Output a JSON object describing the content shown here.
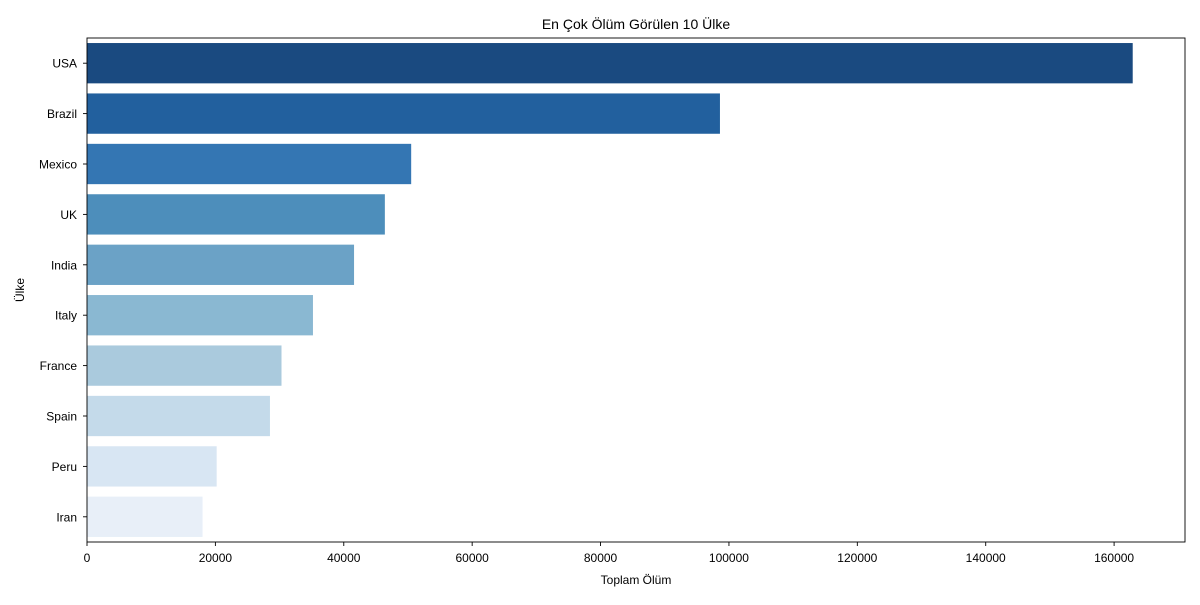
{
  "chart_data": {
    "type": "bar",
    "orientation": "horizontal",
    "title": "En Çok Ölüm Görülen 10 Ülke",
    "xlabel": "Toplam Ölüm",
    "ylabel": "Ülke",
    "categories": [
      "USA",
      "Brazil",
      "Mexico",
      "UK",
      "India",
      "Italy",
      "France",
      "Spain",
      "Peru",
      "Iran"
    ],
    "values": [
      162900,
      98600,
      50500,
      46400,
      41600,
      35200,
      30300,
      28500,
      20200,
      18000
    ],
    "colors": [
      "#1a4a80",
      "#22609e",
      "#3476b3",
      "#4d8ebb",
      "#6ba2c6",
      "#8ab8d2",
      "#aacadd",
      "#c4daea",
      "#d8e6f3",
      "#e8eff8"
    ],
    "xlim": [
      0,
      171045
    ],
    "xticks": [
      0,
      20000,
      40000,
      60000,
      80000,
      100000,
      120000,
      140000,
      160000
    ],
    "grid": false,
    "legend": "none"
  }
}
